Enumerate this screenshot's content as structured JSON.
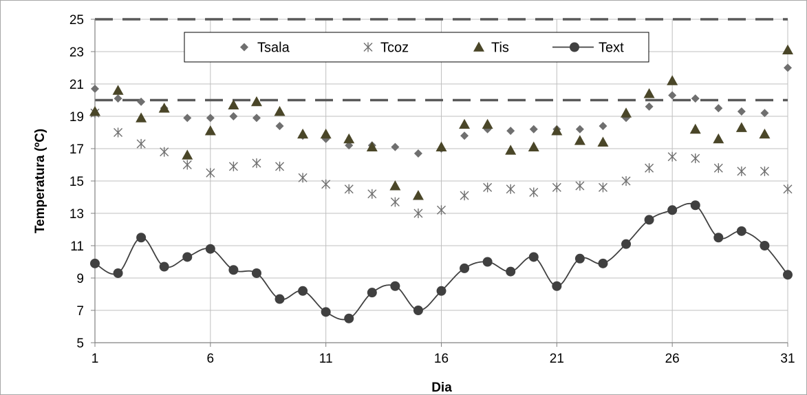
{
  "chart_data": {
    "type": "scatter",
    "title": "",
    "xlabel": "Dia",
    "ylabel": "Temperatura (ºC)",
    "xlim": [
      1,
      31
    ],
    "ylim": [
      5,
      25
    ],
    "x_ticks": [
      1,
      6,
      11,
      16,
      21,
      26,
      31
    ],
    "y_ticks": [
      5,
      7,
      9,
      11,
      13,
      15,
      17,
      19,
      21,
      23,
      25
    ],
    "grid": true,
    "legend_position": "top",
    "x": [
      1,
      2,
      3,
      4,
      5,
      6,
      7,
      8,
      9,
      10,
      11,
      12,
      13,
      14,
      15,
      16,
      17,
      18,
      19,
      20,
      21,
      22,
      23,
      24,
      25,
      26,
      27,
      28,
      29,
      30,
      31
    ],
    "series": [
      {
        "name": "Tsala",
        "marker": "diamond",
        "color": "#6f6f6f",
        "values": [
          20.7,
          20.1,
          19.9,
          19.5,
          18.9,
          18.9,
          19.0,
          18.9,
          18.4,
          17.8,
          17.6,
          17.2,
          17.2,
          17.1,
          16.7,
          17.0,
          17.8,
          18.2,
          18.1,
          18.2,
          18.2,
          18.2,
          18.4,
          18.9,
          19.6,
          20.3,
          20.1,
          19.5,
          19.3,
          19.2,
          22.0
        ]
      },
      {
        "name": "Tcoz",
        "marker": "asterisk",
        "color": "#6f6f6f",
        "values": [
          19.2,
          18.0,
          17.3,
          16.8,
          16.0,
          15.5,
          15.9,
          16.1,
          15.9,
          15.2,
          14.8,
          14.5,
          14.2,
          13.7,
          13.0,
          13.2,
          14.1,
          14.6,
          14.5,
          14.3,
          14.6,
          14.7,
          14.6,
          15.0,
          15.8,
          16.5,
          16.4,
          15.8,
          15.6,
          15.6,
          14.5
        ]
      },
      {
        "name": "Tis",
        "marker": "triangle",
        "color": "#4a4628",
        "values": [
          19.3,
          20.6,
          18.9,
          19.5,
          16.6,
          18.1,
          19.7,
          19.9,
          19.3,
          17.9,
          17.9,
          17.6,
          17.1,
          14.7,
          14.1,
          17.1,
          18.5,
          18.5,
          16.9,
          17.1,
          18.1,
          17.5,
          17.4,
          19.2,
          20.4,
          21.2,
          18.2,
          17.6,
          18.3,
          17.9,
          23.1
        ]
      },
      {
        "name": "Text",
        "marker": "circle-line",
        "color": "#404040",
        "values": [
          9.9,
          9.3,
          11.5,
          9.7,
          10.3,
          10.8,
          9.5,
          9.3,
          7.7,
          8.2,
          6.9,
          6.5,
          8.1,
          8.5,
          7.0,
          8.2,
          9.6,
          10.0,
          9.4,
          10.3,
          8.5,
          10.2,
          9.9,
          11.1,
          12.6,
          13.2,
          13.5,
          11.5,
          11.9,
          11.0,
          9.2
        ]
      }
    ],
    "reference_lines": [
      {
        "y": 25,
        "style": "dashed",
        "color": "#595959"
      },
      {
        "y": 20,
        "style": "dashed",
        "color": "#595959"
      }
    ]
  }
}
